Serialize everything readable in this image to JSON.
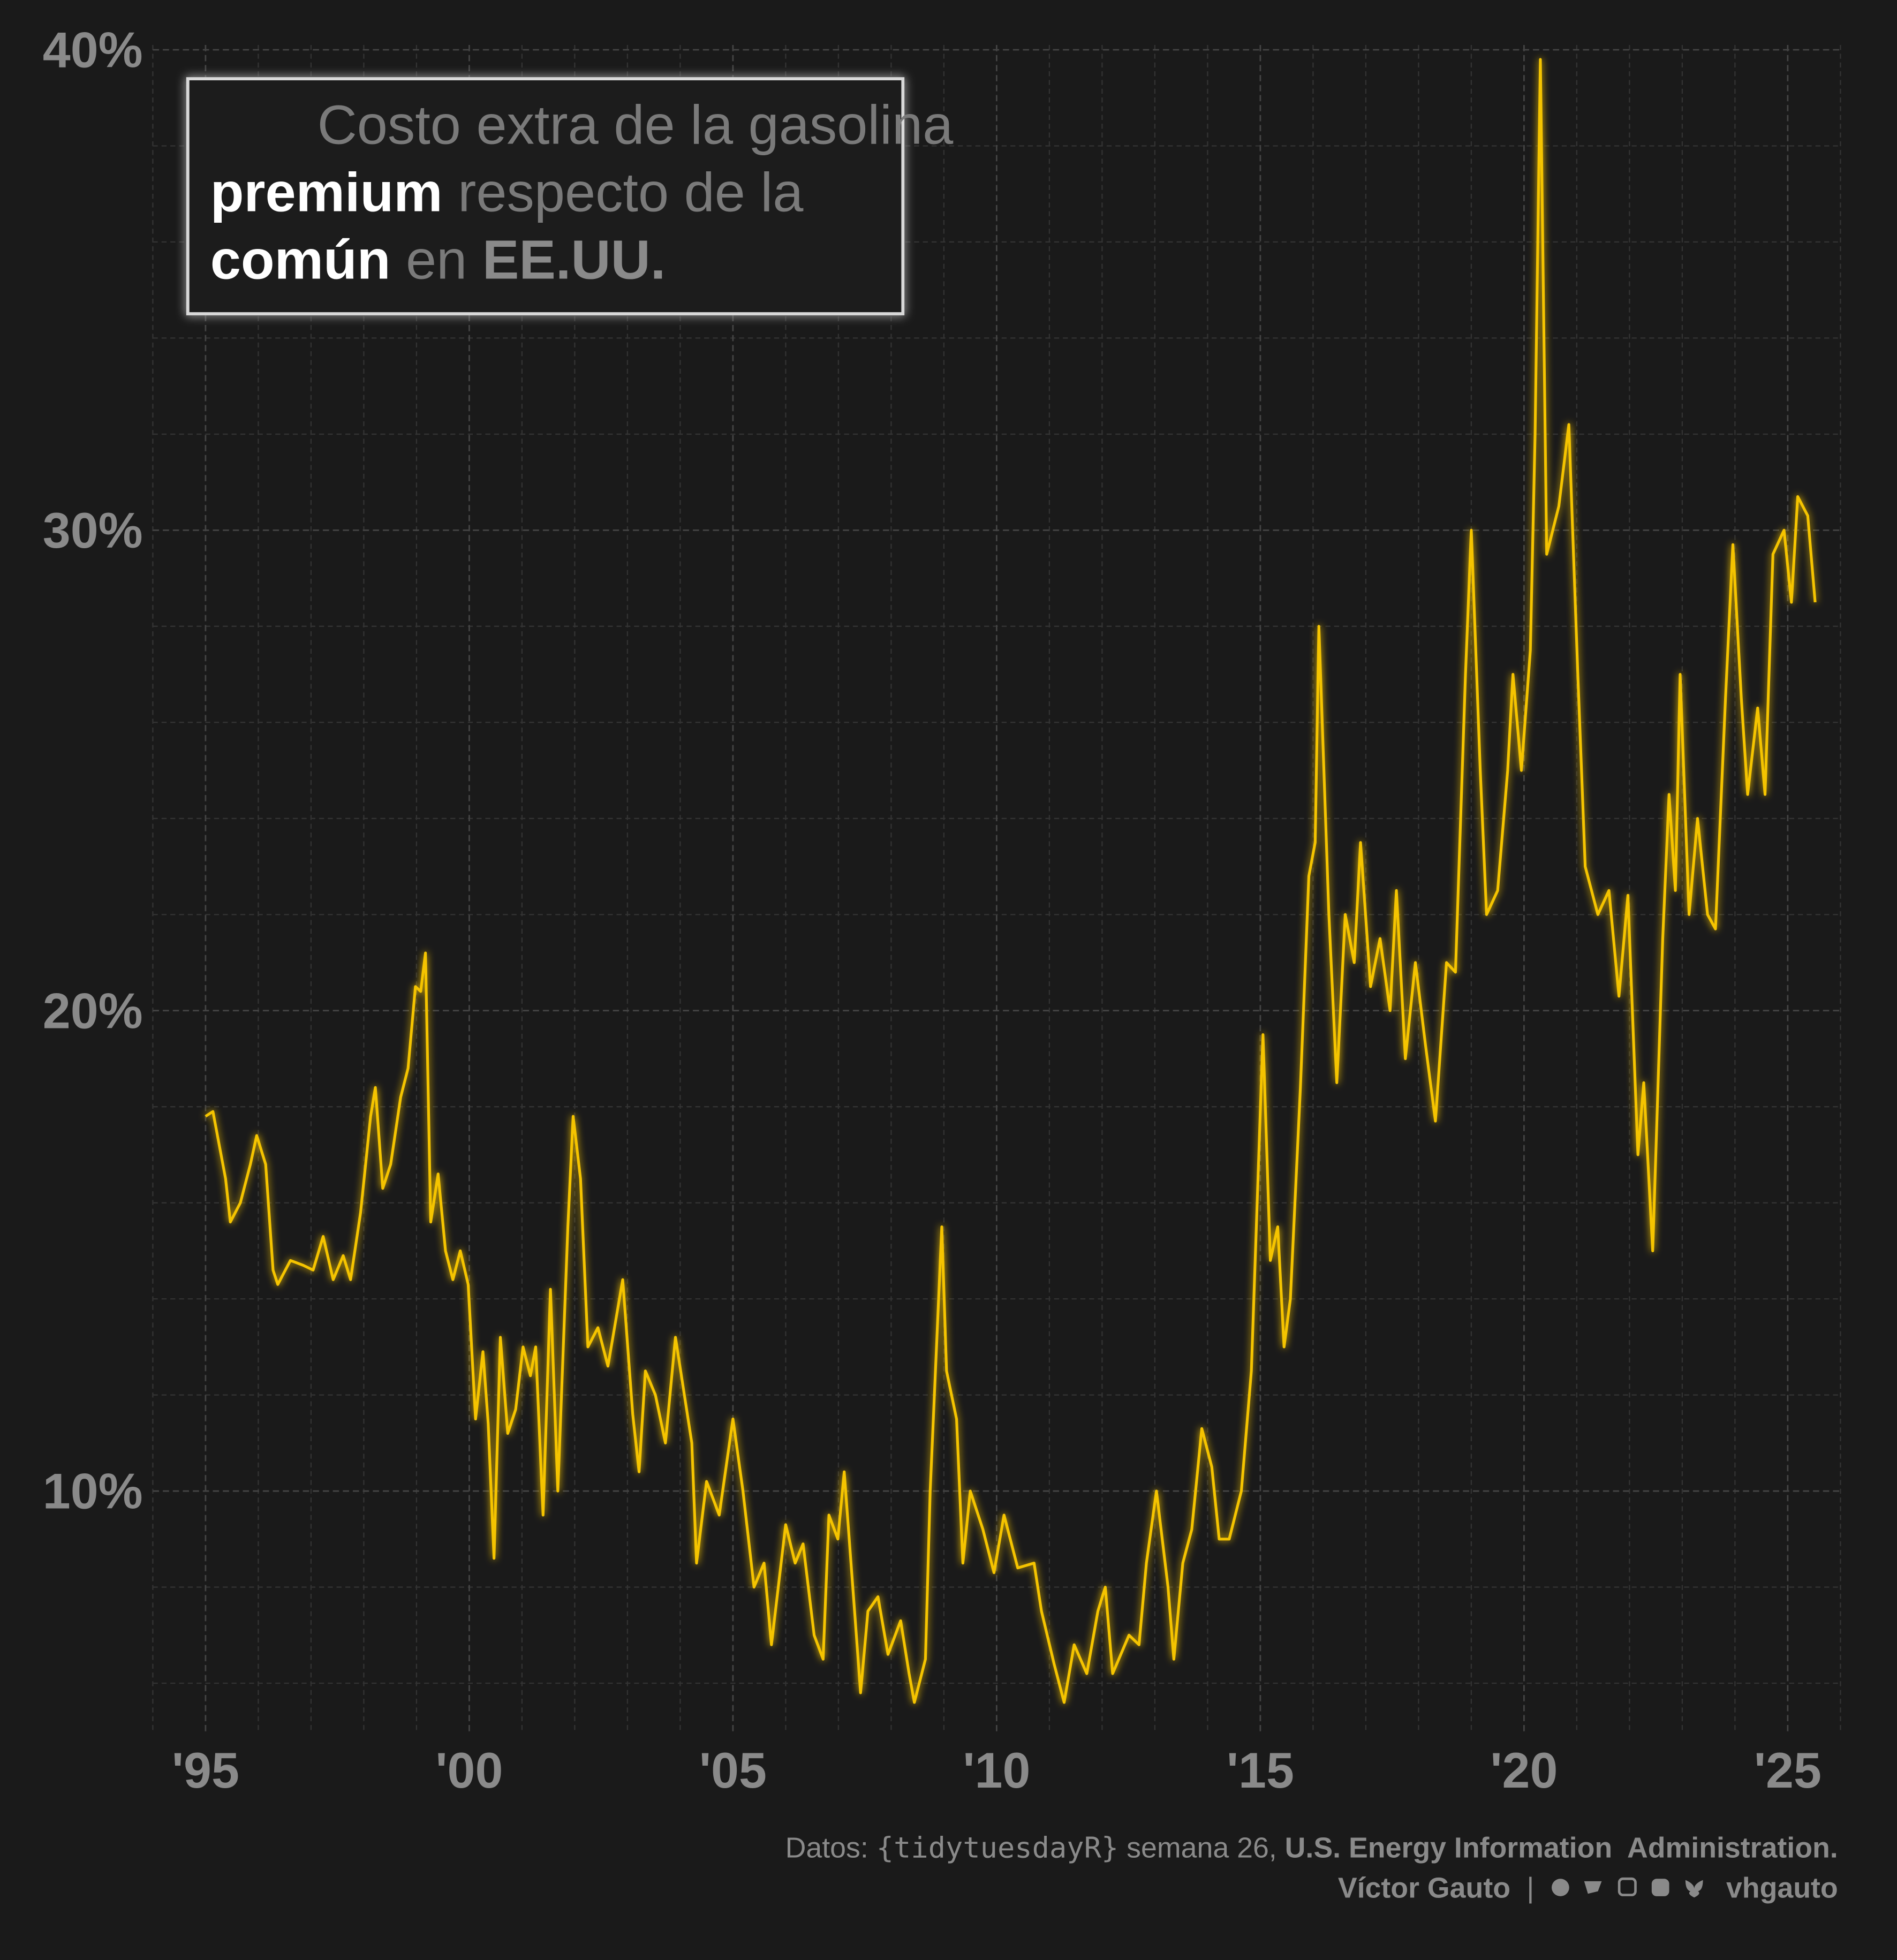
{
  "chart_data": {
    "type": "line",
    "title": [
      "Costo extra de la gasolina",
      "premium",
      " respecto de la",
      "común",
      " en ",
      "EE.UU."
    ],
    "caption": [
      "Datos: ",
      "{tidytuesdayR}",
      " semana 26, ",
      "U.S. Energy Information  Administration",
      ".",
      "Víctor Gauto",
      "|",
      "vhgauto"
    ],
    "color": "#f5c400",
    "grid": true,
    "xlim": [
      1994,
      2026
    ],
    "ylim": [
      5,
      40.1
    ],
    "xticks": [
      {
        "value": 1995,
        "label": "'95"
      },
      {
        "value": 2000,
        "label": "'00"
      },
      {
        "value": 2005,
        "label": "'05"
      },
      {
        "value": 2010,
        "label": "'10"
      },
      {
        "value": 2015,
        "label": "'15"
      },
      {
        "value": 2020,
        "label": "'20"
      },
      {
        "value": 2025,
        "label": "'25"
      }
    ],
    "yticks": [
      {
        "value": 10,
        "label": "10%"
      },
      {
        "value": 20,
        "label": "20%"
      },
      {
        "value": 30,
        "label": "30%"
      },
      {
        "value": 40,
        "label": "40%"
      }
    ],
    "x_minor_ticks": [
      1994,
      1996,
      1997,
      1998,
      1999,
      2001,
      2002,
      2003,
      2004,
      2006,
      2007,
      2008,
      2009,
      2011,
      2012,
      2013,
      2014,
      2016,
      2017,
      2018,
      2019,
      2021,
      2022,
      2023,
      2024,
      2026
    ],
    "y_minor_ticks": [
      6,
      8,
      12,
      14,
      16,
      18,
      22,
      24,
      26,
      28,
      32,
      34,
      36,
      38
    ],
    "x": [
      1995.0,
      1995.14,
      1995.38,
      1995.47,
      1995.66,
      1995.85,
      1995.97,
      1996.14,
      1996.28,
      1996.37,
      1996.61,
      1996.85,
      1997.04,
      1997.23,
      1997.42,
      1997.61,
      1997.75,
      1997.94,
      1998.13,
      1998.22,
      1998.36,
      1998.51,
      1998.7,
      1998.84,
      1998.98,
      1999.08,
      1999.17,
      1999.27,
      1999.41,
      1999.55,
      1999.69,
      1999.83,
      1999.98,
      2000.12,
      2000.26,
      2000.36,
      2000.47,
      2000.59,
      2000.73,
      2000.88,
      2001.02,
      2001.16,
      2001.26,
      2001.4,
      2001.54,
      2001.68,
      2001.87,
      2001.97,
      2002.11,
      2002.25,
      2002.44,
      2002.63,
      2002.91,
      2003.1,
      2003.22,
      2003.34,
      2003.53,
      2003.72,
      2003.91,
      2004.22,
      2004.31,
      2004.5,
      2004.74,
      2005.0,
      2005.19,
      2005.4,
      2005.59,
      2005.73,
      2006.0,
      2006.18,
      2006.33,
      2006.54,
      2006.71,
      2006.82,
      2006.99,
      2007.11,
      2007.32,
      2007.42,
      2007.56,
      2007.75,
      2007.94,
      2008.18,
      2008.34,
      2008.44,
      2008.65,
      2008.74,
      2008.96,
      2009.05,
      2009.24,
      2009.36,
      2009.5,
      2009.74,
      2009.95,
      2010.14,
      2010.4,
      2010.71,
      2010.85,
      2011.09,
      2011.28,
      2011.47,
      2011.71,
      2011.92,
      2012.06,
      2012.2,
      2012.51,
      2012.7,
      2012.84,
      2013.03,
      2013.25,
      2013.36,
      2013.53,
      2013.7,
      2013.89,
      2014.08,
      2014.22,
      2014.41,
      2014.64,
      2014.83,
      2015.05,
      2015.19,
      2015.33,
      2015.45,
      2015.57,
      2015.76,
      2015.92,
      2016.04,
      2016.11,
      2016.3,
      2016.45,
      2016.61,
      2016.78,
      2016.9,
      2017.09,
      2017.27,
      2017.46,
      2017.58,
      2017.75,
      2017.94,
      2018.13,
      2018.32,
      2018.53,
      2018.7,
      2018.89,
      2019.0,
      2019.17,
      2019.29,
      2019.5,
      2019.69,
      2019.79,
      2019.95,
      2020.12,
      2020.21,
      2020.31,
      2020.43,
      2020.66,
      2020.85,
      2021.02,
      2021.16,
      2021.4,
      2021.61,
      2021.8,
      2021.97,
      2022.16,
      2022.27,
      2022.44,
      2022.63,
      2022.75,
      2022.87,
      2022.96,
      2023.13,
      2023.29,
      2023.48,
      2023.63,
      2023.82,
      2023.96,
      2024.12,
      2024.24,
      2024.43,
      2024.57,
      2024.72,
      2024.93,
      2025.07,
      2025.19,
      2025.38,
      2025.52
    ],
    "values": [
      17.8,
      17.9,
      16.5,
      15.6,
      16.0,
      16.8,
      17.4,
      16.8,
      14.6,
      14.3,
      14.8,
      14.7,
      14.6,
      15.3,
      14.4,
      14.9,
      14.4,
      15.8,
      17.8,
      18.4,
      16.3,
      16.8,
      18.2,
      18.8,
      20.5,
      20.4,
      21.2,
      15.6,
      16.6,
      15.0,
      14.4,
      15.0,
      14.3,
      11.5,
      12.9,
      11.4,
      8.6,
      13.2,
      11.2,
      11.7,
      13.0,
      12.4,
      13.0,
      9.5,
      14.2,
      10.0,
      15.5,
      17.8,
      16.5,
      13.0,
      13.4,
      12.6,
      14.4,
      11.6,
      10.4,
      12.5,
      12.0,
      11.0,
      13.2,
      11.0,
      8.5,
      10.2,
      9.5,
      11.5,
      10.0,
      8.0,
      8.5,
      6.8,
      9.3,
      8.5,
      8.9,
      7.0,
      6.5,
      9.5,
      9.0,
      10.4,
      7.3,
      5.8,
      7.5,
      7.8,
      6.6,
      7.3,
      6.2,
      5.6,
      6.5,
      10.0,
      15.5,
      12.5,
      11.5,
      8.5,
      10.0,
      9.2,
      8.3,
      9.5,
      8.4,
      8.5,
      7.5,
      6.4,
      5.6,
      6.8,
      6.2,
      7.5,
      8.0,
      6.2,
      7.0,
      6.8,
      8.5,
      10.0,
      8.0,
      6.5,
      8.5,
      9.2,
      11.3,
      10.5,
      9.0,
      9.0,
      10.0,
      12.5,
      19.5,
      14.8,
      15.5,
      13.0,
      14.0,
      18.4,
      22.8,
      23.5,
      28.0,
      22.0,
      18.5,
      22.0,
      21.0,
      23.5,
      20.5,
      21.5,
      20.0,
      22.5,
      19.0,
      21.0,
      19.3,
      17.7,
      21.0,
      20.8,
      27.0,
      30.0,
      25.0,
      22.0,
      22.5,
      25.0,
      27.0,
      25.0,
      27.5,
      32.0,
      39.8,
      29.5,
      30.5,
      32.2,
      27.0,
      23.0,
      22.0,
      22.5,
      20.3,
      22.4,
      17.0,
      18.5,
      15.0,
      21.5,
      24.5,
      22.5,
      27.0,
      22.0,
      24.0,
      22.0,
      21.7,
      26.5,
      29.7,
      26.5,
      24.5,
      26.3,
      24.5,
      29.5,
      30.0,
      28.5,
      30.7,
      30.3,
      28.5
    ]
  }
}
